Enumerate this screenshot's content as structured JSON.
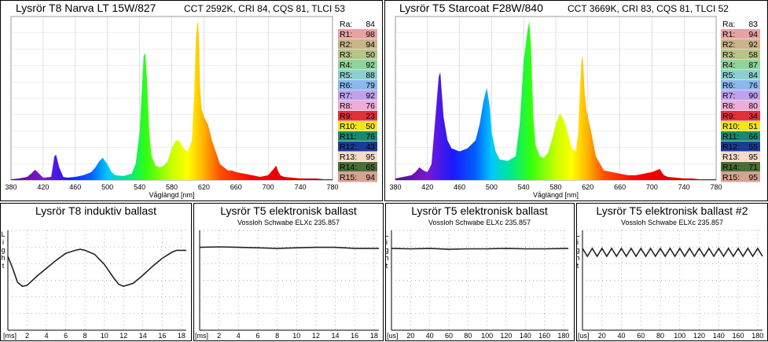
{
  "chart_data": [
    {
      "type": "area",
      "title": "Lysrör T8 Narva LT 15W/827",
      "subtitle": "CCT 2592K, CRI 84, CQS 81, TLCI 53",
      "xlabel": "Våglängd [nm]",
      "xlim": [
        380,
        780
      ],
      "xticks": [
        "380",
        "420",
        "460",
        "500",
        "540",
        "580",
        "620",
        "660",
        "700",
        "740",
        "780"
      ],
      "x": [
        380,
        390,
        400,
        405,
        410,
        415,
        420,
        430,
        434,
        436,
        440,
        445,
        450,
        460,
        470,
        480,
        485,
        490,
        494,
        500,
        505,
        510,
        520,
        530,
        535,
        540,
        545,
        547,
        549,
        552,
        555,
        560,
        565,
        570,
        575,
        580,
        585,
        588,
        590,
        595,
        600,
        605,
        608,
        610,
        612,
        613,
        614,
        615,
        617,
        620,
        625,
        630,
        640,
        650,
        655,
        660,
        670,
        680,
        690,
        700,
        705,
        710,
        712,
        715,
        720,
        730,
        740,
        750,
        760,
        770,
        780
      ],
      "values": [
        0.5,
        1,
        2,
        4,
        6.5,
        4,
        1.5,
        2,
        15,
        16,
        8,
        2,
        1.5,
        2,
        3,
        5,
        8,
        12,
        14,
        10,
        5,
        3,
        2.5,
        4,
        10,
        30,
        78,
        80,
        65,
        30,
        15,
        9,
        8,
        9,
        12,
        20,
        25,
        25,
        24,
        20,
        18,
        25,
        55,
        90,
        100,
        98,
        85,
        60,
        45,
        40,
        35,
        25,
        10,
        6,
        6,
        5,
        4,
        3,
        2,
        3,
        6,
        9,
        6,
        3,
        2,
        1.5,
        1,
        1,
        1,
        0.5,
        0.5
      ],
      "cri": [
        {
          "label": "Ra:",
          "value": "84",
          "color": "#ffffff"
        },
        {
          "label": "R1:",
          "value": "98",
          "color": "#e6a3a3"
        },
        {
          "label": "R2:",
          "value": "94",
          "color": "#c9b48c"
        },
        {
          "label": "R3:",
          "value": "50",
          "color": "#b7c486"
        },
        {
          "label": "R4:",
          "value": "92",
          "color": "#8fd49c"
        },
        {
          "label": "R5:",
          "value": "88",
          "color": "#8cd0d0"
        },
        {
          "label": "R6:",
          "value": "79",
          "color": "#8cb8ec"
        },
        {
          "label": "R7:",
          "value": "92",
          "color": "#c0a2ec"
        },
        {
          "label": "R8:",
          "value": "76",
          "color": "#eaaeda"
        },
        {
          "label": "R9:",
          "value": "23",
          "color": "#e2303a"
        },
        {
          "label": "R10:",
          "value": "50",
          "color": "#f4e41c"
        },
        {
          "label": "R11:",
          "value": "76",
          "color": "#188a6e"
        },
        {
          "label": "R12:",
          "value": "43",
          "color": "#1a3c94"
        },
        {
          "label": "R13:",
          "value": "95",
          "color": "#f4dcc8"
        },
        {
          "label": "R14:",
          "value": "65",
          "color": "#4c6c36"
        },
        {
          "label": "R15:",
          "value": "94",
          "color": "#d8a290"
        }
      ]
    },
    {
      "type": "area",
      "title": "Lysrör T5 Starcoat F28W/840",
      "subtitle": "CCT 3669K, CRI 83, CQS 81, TLCI 52",
      "xlabel": "Våglängd [nm]",
      "xlim": [
        380,
        780
      ],
      "xticks": [
        "380",
        "420",
        "460",
        "500",
        "540",
        "580",
        "620",
        "660",
        "700",
        "740",
        "780"
      ],
      "x": [
        380,
        390,
        400,
        405,
        410,
        415,
        420,
        425,
        430,
        434,
        436,
        440,
        445,
        450,
        460,
        470,
        480,
        485,
        490,
        494,
        498,
        500,
        505,
        510,
        520,
        530,
        535,
        540,
        545,
        547,
        549,
        552,
        555,
        560,
        565,
        570,
        575,
        580,
        585,
        588,
        590,
        595,
        600,
        605,
        608,
        610,
        612,
        613,
        614,
        616,
        618,
        620,
        625,
        630,
        640,
        650,
        660,
        670,
        680,
        690,
        700,
        705,
        710,
        712,
        715,
        720,
        730,
        740,
        750,
        760,
        770,
        780
      ],
      "values": [
        1,
        2,
        3,
        5,
        8,
        6,
        5,
        10,
        40,
        65,
        68,
        40,
        25,
        20,
        18,
        20,
        25,
        35,
        50,
        58,
        45,
        30,
        18,
        13,
        12,
        15,
        35,
        75,
        95,
        100,
        85,
        40,
        22,
        15,
        14,
        17,
        25,
        35,
        42,
        40,
        38,
        30,
        20,
        18,
        30,
        55,
        74,
        78,
        75,
        55,
        45,
        40,
        28,
        15,
        6,
        5,
        4,
        3,
        3,
        4,
        5,
        6,
        7,
        5,
        3,
        2,
        1.5,
        1,
        1,
        0.5,
        0.5,
        0.5
      ],
      "cri": [
        {
          "label": "Ra:",
          "value": "83",
          "color": "#ffffff"
        },
        {
          "label": "R1:",
          "value": "94",
          "color": "#e6a3a3"
        },
        {
          "label": "R2:",
          "value": "92",
          "color": "#c9b48c"
        },
        {
          "label": "R3:",
          "value": "58",
          "color": "#b7c486"
        },
        {
          "label": "R4:",
          "value": "87",
          "color": "#8fd49c"
        },
        {
          "label": "R5:",
          "value": "84",
          "color": "#8cd0d0"
        },
        {
          "label": "R6:",
          "value": "76",
          "color": "#8cb8ec"
        },
        {
          "label": "R7:",
          "value": "90",
          "color": "#c0a2ec"
        },
        {
          "label": "R8:",
          "value": "80",
          "color": "#eaaeda"
        },
        {
          "label": "R9:",
          "value": "34",
          "color": "#e2303a"
        },
        {
          "label": "R10:",
          "value": "51",
          "color": "#f4e41c"
        },
        {
          "label": "R11:",
          "value": "66",
          "color": "#188a6e"
        },
        {
          "label": "R12:",
          "value": "55",
          "color": "#1a3c94"
        },
        {
          "label": "R13:",
          "value": "95",
          "color": "#f4dcc8"
        },
        {
          "label": "R14:",
          "value": "71",
          "color": "#4c6c36"
        },
        {
          "label": "R15:",
          "value": "95",
          "color": "#d8a290"
        }
      ]
    },
    {
      "type": "line",
      "title": "Lysrör T8 induktiv ballast",
      "subtitle": "",
      "ylabel": "Light",
      "xunit": "[ms]",
      "xlim": [
        0,
        18.5
      ],
      "xticks": [
        "2",
        "4",
        "6",
        "8",
        "10",
        "12",
        "14",
        "16",
        "18"
      ],
      "ylim": [
        0,
        1
      ],
      "x": [
        0,
        0.5,
        1,
        1.5,
        2,
        3,
        4,
        5,
        6,
        7,
        7.5,
        8,
        9,
        10,
        11,
        11.5,
        12,
        13,
        14,
        15,
        16,
        17,
        17.5,
        18,
        18.5
      ],
      "values": [
        0.74,
        0.62,
        0.48,
        0.44,
        0.45,
        0.54,
        0.62,
        0.7,
        0.77,
        0.8,
        0.81,
        0.8,
        0.76,
        0.66,
        0.52,
        0.46,
        0.44,
        0.47,
        0.55,
        0.64,
        0.72,
        0.78,
        0.8,
        0.8,
        0.8
      ]
    },
    {
      "type": "line",
      "title": "Lysrör T5 elektronisk ballast",
      "subtitle": "Vossloh Schwabe ELXc 235.857",
      "ylabel": "",
      "xunit": "[ms]",
      "xlim": [
        0,
        18.5
      ],
      "xticks": [
        "2",
        "4",
        "6",
        "8",
        "10",
        "12",
        "14",
        "16",
        "18"
      ],
      "ylim": [
        0,
        1
      ],
      "x": [
        0,
        2,
        4,
        6,
        8,
        10,
        12,
        14,
        16,
        18.5
      ],
      "values": [
        0.83,
        0.835,
        0.83,
        0.825,
        0.82,
        0.825,
        0.83,
        0.83,
        0.82,
        0.82
      ]
    },
    {
      "type": "line",
      "title": "Lysrör T5 elektronisk ballast",
      "subtitle": "Vossloh Schwabe ELXc 235.857",
      "ylabel": "Light",
      "xunit": "[us]",
      "xlim": [
        0,
        185
      ],
      "xticks": [
        "20",
        "40",
        "60",
        "80",
        "100",
        "120",
        "140",
        "160",
        "180"
      ],
      "ylim": [
        0,
        1
      ],
      "x": [
        0,
        20,
        40,
        60,
        80,
        100,
        120,
        140,
        160,
        185
      ],
      "values": [
        0.82,
        0.815,
        0.82,
        0.81,
        0.815,
        0.815,
        0.82,
        0.815,
        0.815,
        0.82
      ]
    },
    {
      "type": "line",
      "title": "Lysrör T5 elektronisk ballast #2",
      "subtitle": "Vossloh Schwabe ELXc 235.857",
      "ylabel": "Light",
      "xunit": "[us]",
      "xlim": [
        0,
        185
      ],
      "xticks": [
        "20",
        "40",
        "60",
        "80",
        "100",
        "120",
        "140",
        "160",
        "180"
      ],
      "ylim": [
        0,
        1
      ],
      "x": [
        0,
        5,
        10,
        15,
        20,
        25,
        30,
        35,
        40,
        45,
        50,
        55,
        60,
        65,
        70,
        75,
        80,
        85,
        90,
        95,
        100,
        105,
        110,
        115,
        120,
        125,
        130,
        135,
        140,
        145,
        150,
        155,
        160,
        165,
        170,
        175,
        180,
        185
      ],
      "values": [
        0.82,
        0.74,
        0.82,
        0.74,
        0.82,
        0.74,
        0.82,
        0.74,
        0.82,
        0.74,
        0.82,
        0.74,
        0.82,
        0.74,
        0.82,
        0.74,
        0.82,
        0.74,
        0.82,
        0.74,
        0.82,
        0.74,
        0.82,
        0.74,
        0.82,
        0.74,
        0.82,
        0.74,
        0.82,
        0.74,
        0.82,
        0.74,
        0.82,
        0.74,
        0.82,
        0.74,
        0.82,
        0.74
      ]
    }
  ]
}
